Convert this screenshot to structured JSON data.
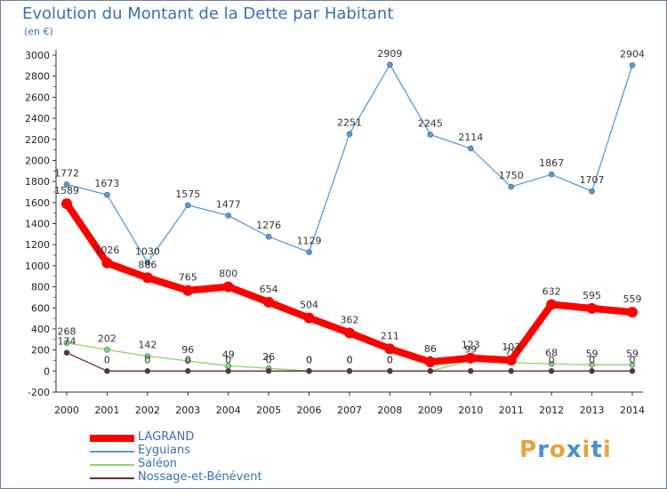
{
  "title": "Evolution du Montant de la Dette par Habitant",
  "subtitle": "(en €)",
  "logo": {
    "text": "Proxiti",
    "colors": [
      "#e8a33a",
      "#4a8fd1",
      "#e8a33a",
      "#4a8fd1",
      "#e8a33a",
      "#4a8fd1",
      "#e8a33a"
    ]
  },
  "chart_data": {
    "type": "line",
    "x": [
      "2000",
      "2001",
      "2002",
      "2003",
      "2004",
      "2005",
      "2006",
      "2007",
      "2008",
      "2009",
      "2010",
      "2011",
      "2012",
      "2013",
      "2014"
    ],
    "ylim": [
      -200,
      3000
    ],
    "yticks": [
      -200,
      0,
      200,
      400,
      600,
      800,
      1000,
      1200,
      1400,
      1600,
      1800,
      2000,
      2200,
      2400,
      2600,
      2800,
      3000
    ],
    "grid": false,
    "legend_position": "bottom-left",
    "series": [
      {
        "name": "Eyguians",
        "color": "#5b9bd5",
        "values": [
          1772,
          1673,
          1030,
          1575,
          1477,
          1276,
          1129,
          2251,
          2909,
          2245,
          2114,
          1750,
          1867,
          1707,
          2904
        ],
        "labels": [
          "1772",
          "1673",
          "1030",
          "1575",
          "1477",
          "1276",
          "1129",
          "2251",
          "2909",
          "2245",
          "2114",
          "1750",
          "1867",
          "1707",
          "2904"
        ]
      },
      {
        "name": "Saléon",
        "color": "#8ed46a",
        "values": [
          268,
          202,
          142,
          96,
          49,
          26,
          0,
          0,
          0,
          0,
          99,
          79,
          68,
          59,
          59
        ],
        "labels": [
          "268",
          "202",
          "142",
          "96",
          "49",
          "26",
          "0",
          "0",
          "0",
          "0",
          "99",
          "79",
          "68",
          "59",
          "59"
        ]
      },
      {
        "name": "Nossage-et-Bénévent",
        "color": "#6b2b2b",
        "values": [
          174,
          0,
          0,
          0,
          0,
          0,
          0,
          0,
          0,
          0,
          0,
          0,
          0,
          0,
          0
        ],
        "labels": [
          "174",
          "0",
          "0",
          "0",
          "0",
          "0",
          "0",
          "0",
          "0",
          "0",
          "0",
          "0",
          "0",
          "0",
          "0"
        ]
      },
      {
        "name": "LAGRAND",
        "color": "#ff0000",
        "values": [
          1589,
          1026,
          886,
          765,
          800,
          654,
          504,
          362,
          211,
          86,
          123,
          103,
          632,
          595,
          559
        ],
        "labels": [
          "1589",
          "1026",
          "886",
          "765",
          "800",
          "654",
          "504",
          "362",
          "211",
          "86",
          "123",
          "103",
          "632",
          "595",
          "559"
        ]
      }
    ]
  },
  "legend": [
    {
      "name": "LAGRAND",
      "color": "#ff0000"
    },
    {
      "name": "Eyguians",
      "color": "#5b9bd5"
    },
    {
      "name": "Saléon",
      "color": "#8ed46a"
    },
    {
      "name": "Nossage-et-Bénévent",
      "color": "#6b2b2b"
    }
  ]
}
